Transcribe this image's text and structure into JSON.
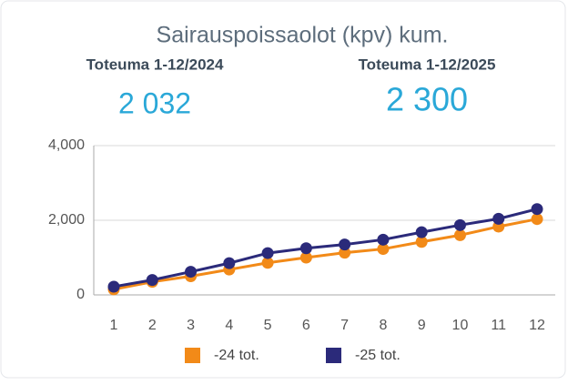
{
  "chart_data": {
    "type": "line",
    "title": "Sairauspoissaolot (kpv) kum.",
    "kpis": [
      {
        "label": "Toteuma 1-12/2024",
        "value": "2 032"
      },
      {
        "label": "Toteuma 1-12/2025",
        "value": "2 300"
      }
    ],
    "categories": [
      "1",
      "2",
      "3",
      "4",
      "5",
      "6",
      "7",
      "8",
      "9",
      "10",
      "11",
      "12"
    ],
    "series": [
      {
        "name": "-24 tot.",
        "color": "#f28a18",
        "values": [
          150,
          350,
          500,
          680,
          860,
          1000,
          1130,
          1230,
          1420,
          1600,
          1830,
          2032
        ]
      },
      {
        "name": "-25 tot.",
        "color": "#2b2a7a",
        "values": [
          220,
          400,
          620,
          850,
          1120,
          1250,
          1350,
          1480,
          1680,
          1870,
          2040,
          2300
        ]
      }
    ],
    "ylim": [
      0,
      4000
    ],
    "yticks": [
      0,
      {
        "value": 2000,
        "label": "2,000"
      },
      {
        "value": 4000,
        "label": "4,000"
      }
    ],
    "grid": true,
    "legend": "bottom"
  }
}
